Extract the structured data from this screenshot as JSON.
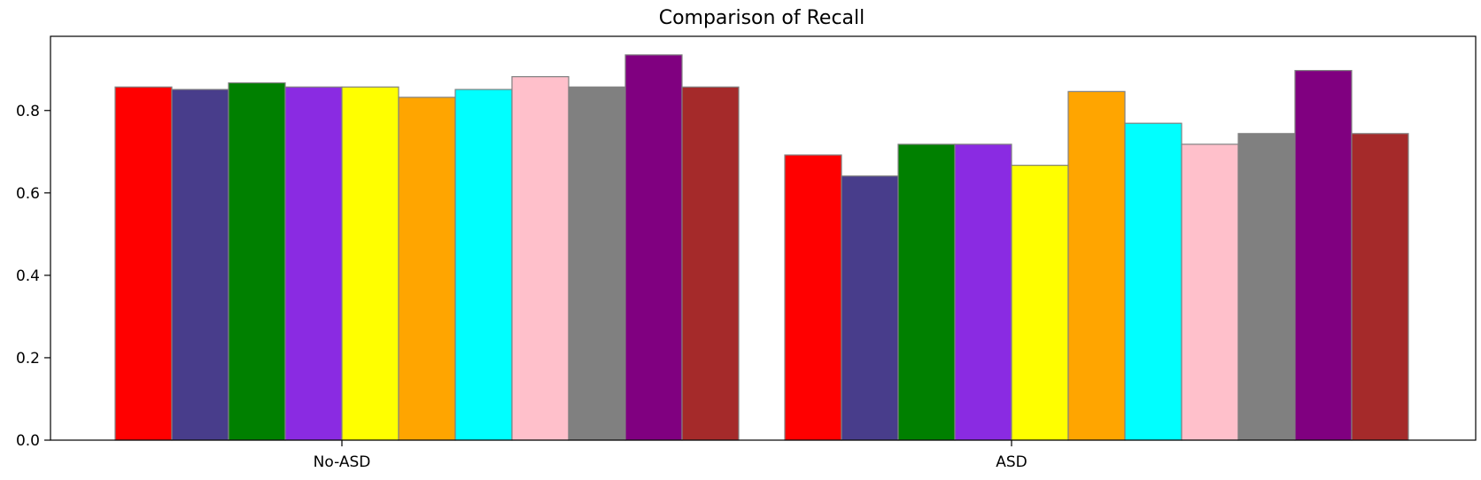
{
  "chart_data": {
    "type": "bar",
    "title": "Comparison of Recall",
    "xlabel": "",
    "ylabel": "",
    "categories": [
      "No-ASD",
      "ASD"
    ],
    "ylim": [
      0,
      0.98
    ],
    "yticks": [
      0.0,
      0.2,
      0.4,
      0.6,
      0.8
    ],
    "ytick_labels": [
      "0.0",
      "0.2",
      "0.4",
      "0.6",
      "0.8"
    ],
    "grid": false,
    "legend": "none",
    "bar_edge_color": "#808080",
    "series": [
      {
        "color": "#ff0000",
        "values": [
          0.857,
          0.692
        ]
      },
      {
        "color": "#483d8b",
        "values": [
          0.851,
          0.641
        ]
      },
      {
        "color": "#008000",
        "values": [
          0.867,
          0.718
        ]
      },
      {
        "color": "#8a2be2",
        "values": [
          0.857,
          0.718
        ]
      },
      {
        "color": "#ffff00",
        "values": [
          0.857,
          0.667
        ]
      },
      {
        "color": "#ffa500",
        "values": [
          0.832,
          0.846
        ]
      },
      {
        "color": "#00ffff",
        "values": [
          0.851,
          0.769
        ]
      },
      {
        "color": "#ffc0cb",
        "values": [
          0.882,
          0.718
        ]
      },
      {
        "color": "#808080",
        "values": [
          0.857,
          0.744
        ]
      },
      {
        "color": "#800080",
        "values": [
          0.935,
          0.897
        ]
      },
      {
        "color": "#a52a2a",
        "values": [
          0.857,
          0.744
        ]
      }
    ]
  }
}
